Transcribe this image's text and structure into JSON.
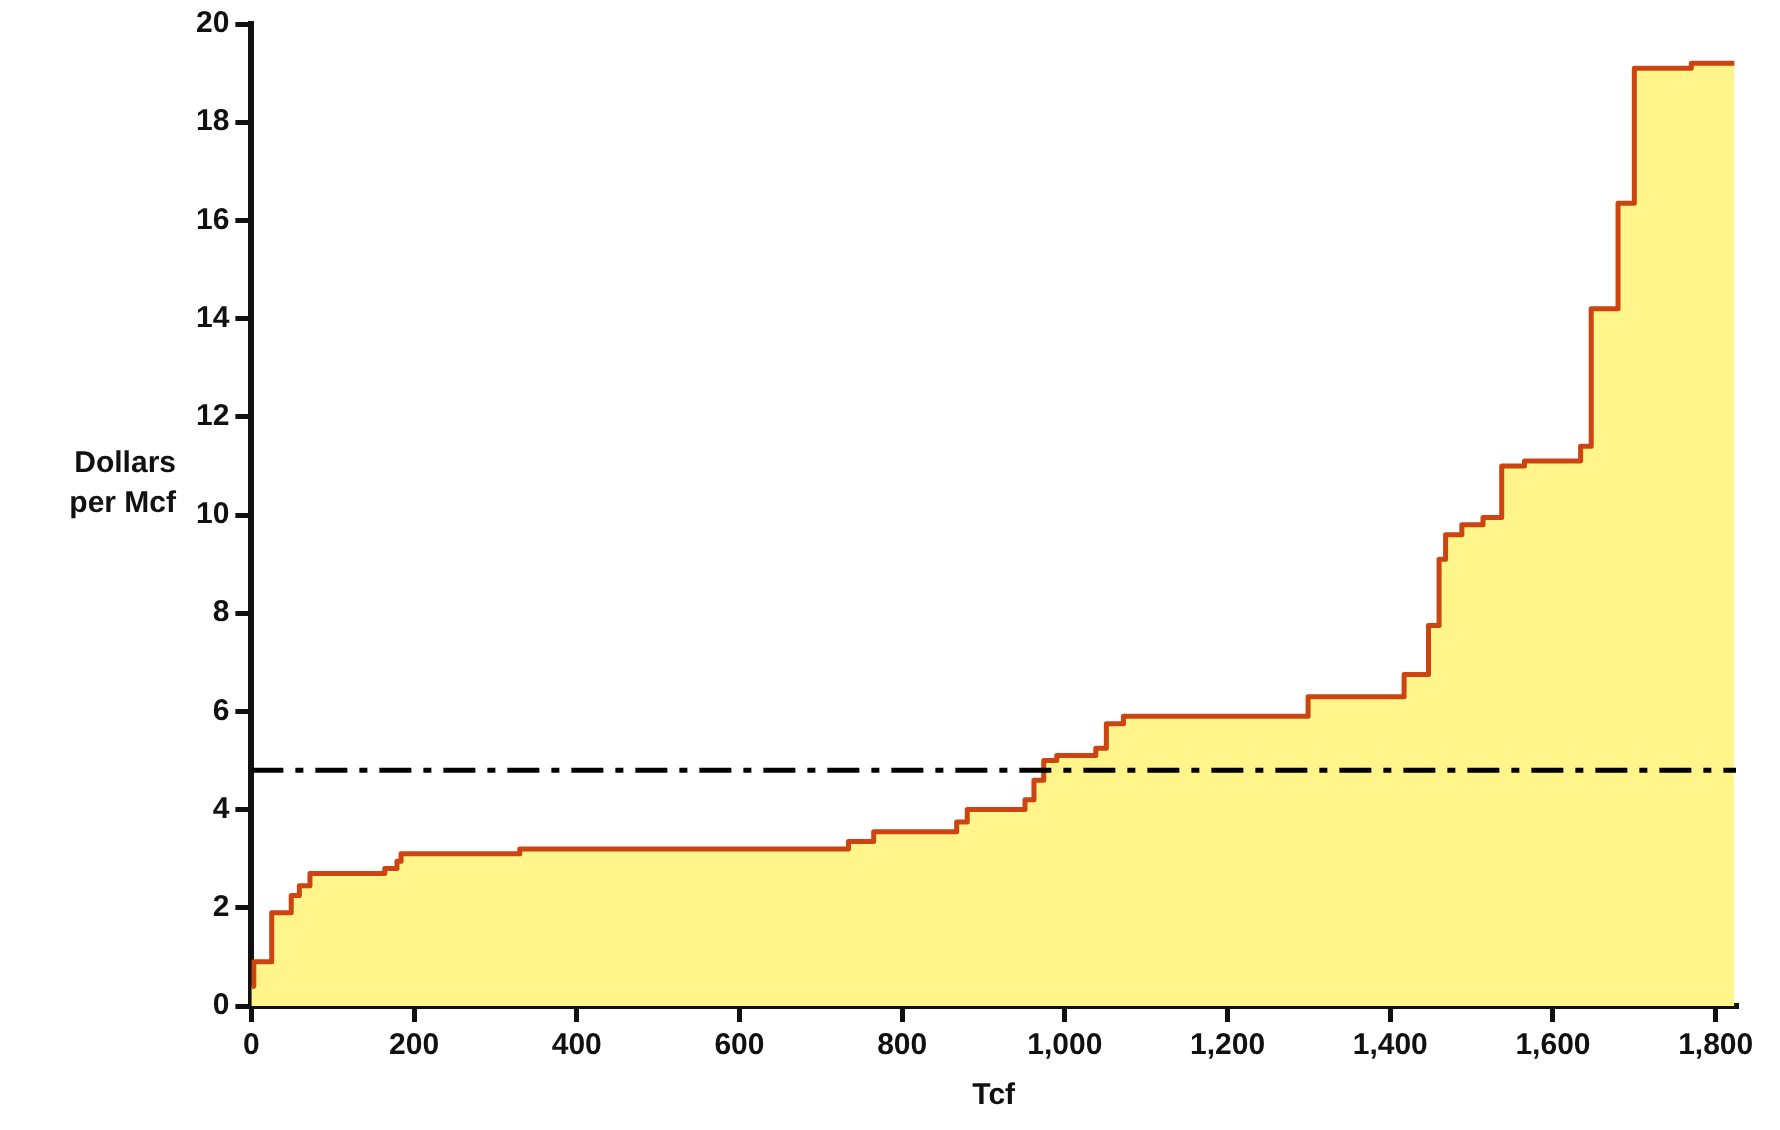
{
  "chart_data": {
    "type": "step",
    "xlabel": "Tcf",
    "ylabel": "Dollars per Mcf",
    "x": [
      0,
      3,
      25,
      49,
      59,
      72,
      164,
      179,
      184,
      330,
      734,
      765,
      867,
      880,
      951,
      962,
      974,
      990,
      1038,
      1051,
      1072,
      1299,
      1417,
      1447,
      1460,
      1468,
      1488,
      1514,
      1537,
      1565,
      1634,
      1647,
      1680,
      1700,
      1770,
      1823
    ],
    "series": [
      {
        "type": "area",
        "color": "#fff58a",
        "values": [
          0.4,
          0.9,
          1.9,
          2.25,
          2.45,
          2.7,
          2.8,
          2.95,
          3.1,
          3.2,
          3.35,
          3.55,
          3.75,
          4,
          4.2,
          4.6,
          5,
          5.1,
          5.25,
          5.75,
          5.9,
          6.3,
          6.75,
          7.75,
          9.1,
          9.6,
          9.8,
          9.95,
          11,
          11.1,
          11.4,
          14.2,
          16.35,
          19.1,
          19.2,
          19.2
        ]
      },
      {
        "type": "step",
        "color": "#cc4411",
        "values": [
          0.4,
          0.9,
          1.9,
          2.25,
          2.45,
          2.7,
          2.8,
          2.95,
          3.1,
          3.2,
          3.35,
          3.55,
          3.75,
          4,
          4.2,
          4.6,
          5,
          5.1,
          5.25,
          5.75,
          5.9,
          6.3,
          6.75,
          7.75,
          9.1,
          9.6,
          9.8,
          9.95,
          11,
          11.1,
          11.4,
          14.2,
          16.35,
          19.1,
          19.2,
          19.2
        ]
      }
    ],
    "xlim": [
      0,
      1825
    ],
    "ylim": [
      0,
      20
    ],
    "xticks": [
      0,
      200,
      400,
      600,
      800,
      {
        "value": 1000,
        "label": "1,000"
      },
      {
        "value": 1200,
        "label": "1,200"
      },
      {
        "value": 1400,
        "label": "1,400"
      },
      {
        "value": 1600,
        "label": "1,600"
      },
      {
        "value": 1800,
        "label": "1,800"
      }
    ],
    "yticks": [
      0,
      2,
      4,
      6,
      8,
      10,
      12,
      14,
      16,
      18,
      20
    ],
    "ref_lines": [
      {
        "axis": "y",
        "value": 4.8,
        "color": "#000000",
        "line_style": "dashed"
      }
    ],
    "grid": false,
    "legend": false
  }
}
